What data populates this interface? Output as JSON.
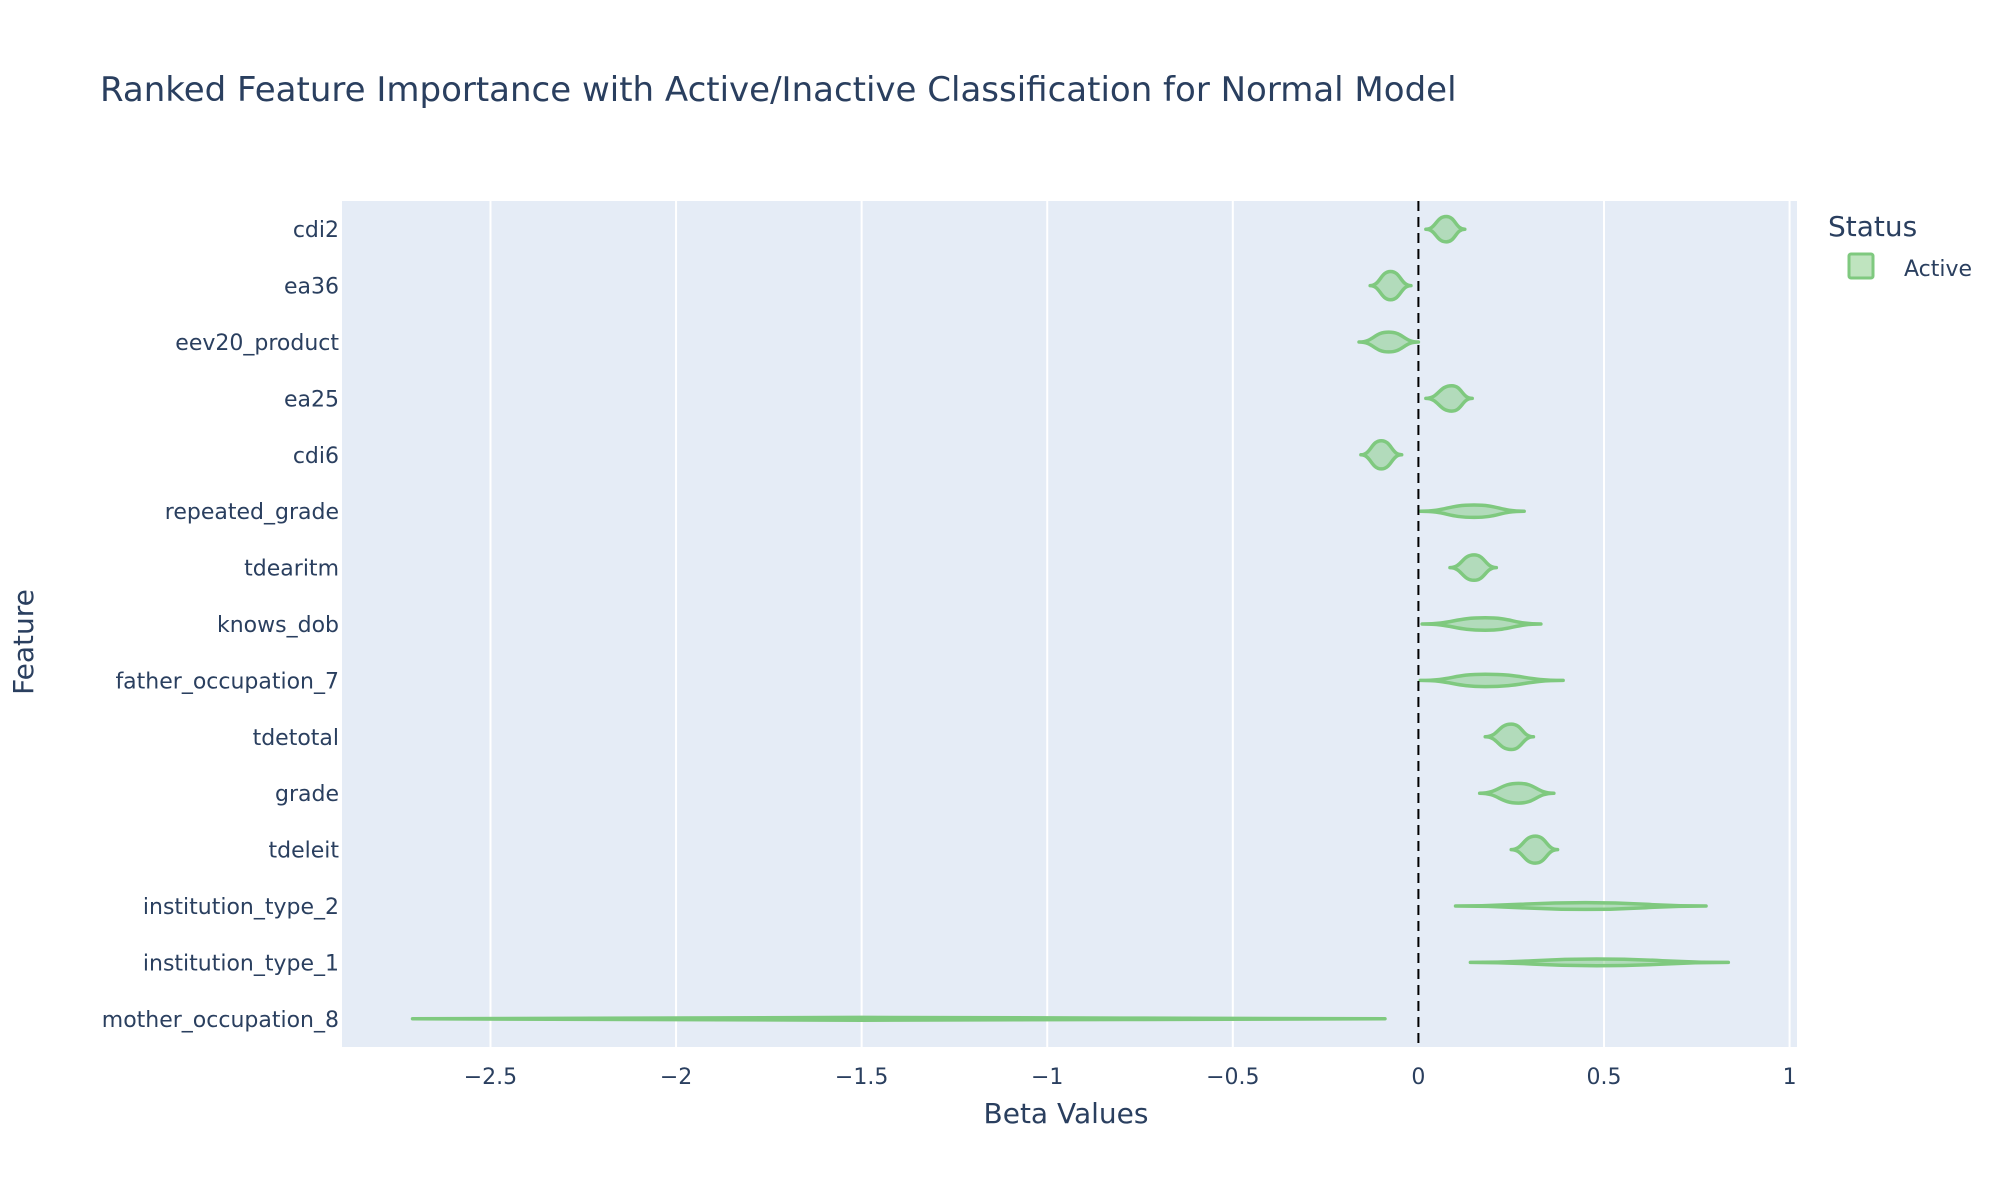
{
  "chart_data": {
    "type": "violin",
    "orientation": "horizontal",
    "title": "Ranked Feature Importance with Active/Inactive Classification for Normal Model",
    "xlabel": "Beta Values",
    "ylabel": "Feature",
    "xlim": [
      -2.9,
      1.02
    ],
    "x_ticks": [
      -2.5,
      -2,
      -1.5,
      -1,
      -0.5,
      0,
      0.5,
      1
    ],
    "x_tick_labels": [
      "−2.5",
      "−2",
      "−1.5",
      "−1",
      "−0.5",
      "0",
      "0.5",
      "1"
    ],
    "reference_line": {
      "x": 0,
      "style": "dashed",
      "color": "#000000"
    },
    "grid": true,
    "plot_background": "#e5ecf6",
    "legend": {
      "title": "Status",
      "position": "top-right",
      "entries": [
        {
          "name": "Active",
          "color": "#7fc97f"
        }
      ]
    },
    "series": [
      {
        "name": "Active",
        "color": "#7fc97f",
        "features": [
          {
            "feature": "cdi2",
            "min": 0.02,
            "median": 0.075,
            "max": 0.125,
            "width": 0.45
          },
          {
            "feature": "ea36",
            "min": -0.13,
            "median": -0.075,
            "max": -0.02,
            "width": 0.5
          },
          {
            "feature": "eev20_product",
            "min": -0.16,
            "median": -0.08,
            "max": 0.0,
            "width": 0.35
          },
          {
            "feature": "ea25",
            "min": 0.02,
            "median": 0.09,
            "max": 0.145,
            "width": 0.45
          },
          {
            "feature": "cdi6",
            "min": -0.155,
            "median": -0.1,
            "max": -0.045,
            "width": 0.5
          },
          {
            "feature": "repeated_grade",
            "min": 0.005,
            "median": 0.15,
            "max": 0.285,
            "width": 0.22
          },
          {
            "feature": "tdearitm",
            "min": 0.085,
            "median": 0.15,
            "max": 0.21,
            "width": 0.45
          },
          {
            "feature": "knows_dob",
            "min": 0.01,
            "median": 0.18,
            "max": 0.33,
            "width": 0.22
          },
          {
            "feature": "father_occupation_7",
            "min": 0.005,
            "median": 0.18,
            "max": 0.39,
            "width": 0.22
          },
          {
            "feature": "tdetotal",
            "min": 0.18,
            "median": 0.25,
            "max": 0.31,
            "width": 0.45
          },
          {
            "feature": "grade",
            "min": 0.165,
            "median": 0.27,
            "max": 0.365,
            "width": 0.35
          },
          {
            "feature": "tdeleit",
            "min": 0.25,
            "median": 0.315,
            "max": 0.375,
            "width": 0.48
          },
          {
            "feature": "institution_type_2",
            "min": 0.1,
            "median": 0.45,
            "max": 0.775,
            "width": 0.12
          },
          {
            "feature": "institution_type_1",
            "min": 0.14,
            "median": 0.48,
            "max": 0.835,
            "width": 0.12
          },
          {
            "feature": "mother_occupation_8",
            "min": -2.71,
            "median": -1.5,
            "max": -0.09,
            "width": 0.05
          }
        ]
      }
    ]
  }
}
